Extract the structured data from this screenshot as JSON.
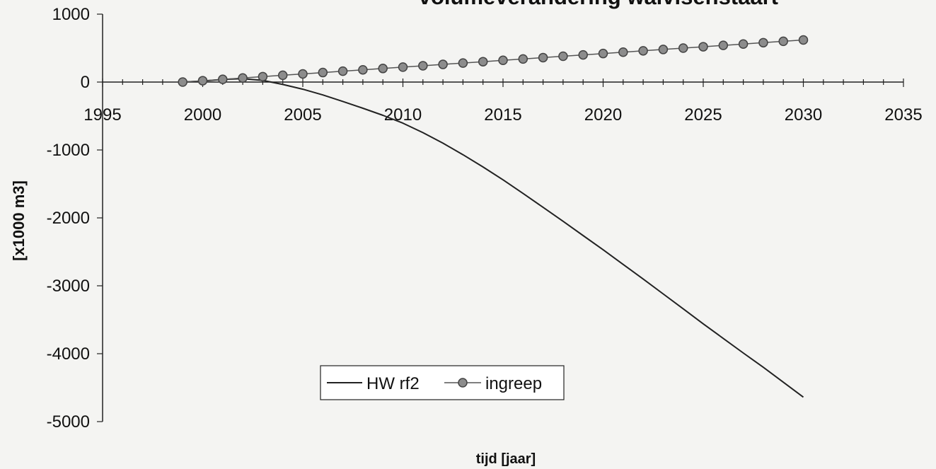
{
  "chart_data": {
    "type": "line",
    "title": "volumeverandering walvisenstaart",
    "xlabel": "tijd [jaar]",
    "ylabel": "[x1000 m3]",
    "xlim": [
      1995,
      2035
    ],
    "ylim": [
      -5000,
      1000
    ],
    "xticks": [
      "1995",
      "2000",
      "2005",
      "2010",
      "2015",
      "2020",
      "2025",
      "2030",
      "2035"
    ],
    "yticks": [
      "1000",
      "0",
      "-1000",
      "-2000",
      "-3000",
      "-4000",
      "-5000"
    ],
    "grid": false,
    "legend_position": "bottom-center",
    "series": [
      {
        "name": "HW rf2",
        "style": "line",
        "color": "#222222",
        "x": [
          1999,
          2000,
          2001,
          2002,
          2003,
          2004,
          2005,
          2006,
          2007,
          2008,
          2009,
          2010,
          2011,
          2012,
          2013,
          2014,
          2015,
          2016,
          2017,
          2018,
          2019,
          2020,
          2021,
          2022,
          2023,
          2024,
          2025,
          2026,
          2027,
          2028,
          2029,
          2030
        ],
        "y": [
          0,
          15,
          40,
          50,
          25,
          -35,
          -105,
          -190,
          -285,
          -385,
          -490,
          -605,
          -745,
          -900,
          -1070,
          -1250,
          -1440,
          -1640,
          -1845,
          -2050,
          -2260,
          -2470,
          -2685,
          -2900,
          -3120,
          -3340,
          -3560,
          -3775,
          -3990,
          -4200,
          -4420,
          -4640
        ]
      },
      {
        "name": "ingreep",
        "style": "line-marker",
        "color": "#555555",
        "marker_color": "#8c8c8c",
        "x": [
          1999,
          2000,
          2001,
          2002,
          2003,
          2004,
          2005,
          2006,
          2007,
          2008,
          2009,
          2010,
          2011,
          2012,
          2013,
          2014,
          2015,
          2016,
          2017,
          2018,
          2019,
          2020,
          2021,
          2022,
          2023,
          2024,
          2025,
          2026,
          2027,
          2028,
          2029,
          2030
        ],
        "y": [
          0,
          20,
          40,
          60,
          80,
          100,
          120,
          140,
          160,
          180,
          200,
          220,
          240,
          260,
          280,
          300,
          320,
          340,
          360,
          380,
          400,
          420,
          440,
          460,
          480,
          500,
          520,
          540,
          560,
          580,
          600,
          620
        ]
      }
    ]
  }
}
